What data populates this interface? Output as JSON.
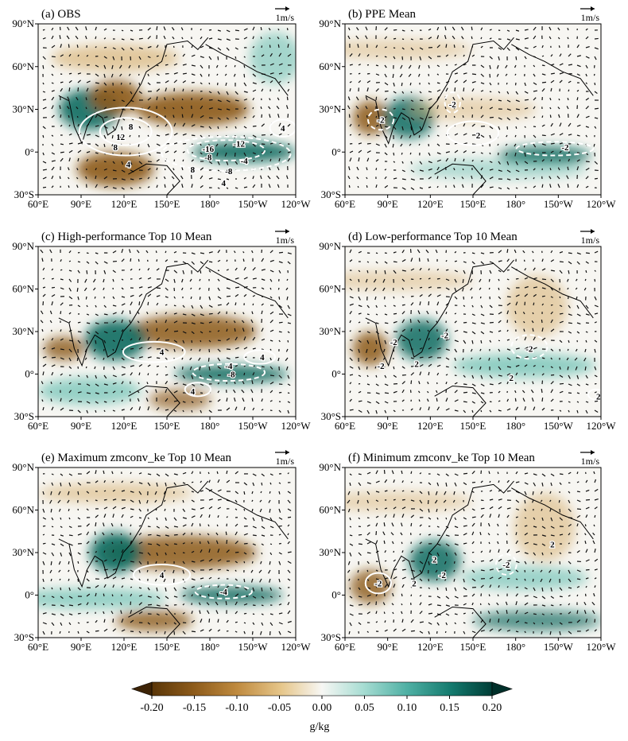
{
  "chart_data": {
    "type": "heatmap",
    "units": "g/kg",
    "colorbar": {
      "ticks": [
        "-0.20",
        "-0.15",
        "-0.10",
        "-0.05",
        "0.00",
        "0.05",
        "0.10",
        "0.15",
        "0.20"
      ],
      "range": [
        -0.2,
        0.2
      ],
      "label": "g/kg"
    },
    "lon_ticks": [
      "60°E",
      "90°E",
      "120°E",
      "150°E",
      "180°",
      "150°W",
      "120°W"
    ],
    "lat_ticks": [
      "90°N",
      "60°N",
      "30°N",
      "0°",
      "30°S"
    ],
    "vector_reference": "1m/s",
    "panels": [
      {
        "title": "(a) OBS",
        "contour_labels": [
          "8",
          "12",
          "8",
          "4",
          "-16",
          "-12",
          "-8",
          "-8",
          "-4",
          "8",
          "4",
          "4"
        ]
      },
      {
        "title": "(b) PPE Mean",
        "contour_labels": [
          "-2",
          "2",
          "-2",
          "-2"
        ]
      },
      {
        "title": "(c) High-performance Top 10 Mean",
        "contour_labels": [
          "4",
          "4",
          "-8",
          "-4",
          "4"
        ]
      },
      {
        "title": "(d) Low-performance Top 10 Mean",
        "contour_labels": [
          "-2",
          "-2",
          "2",
          "-2",
          "-2",
          "2",
          "2"
        ]
      },
      {
        "title": "(e) Maximum zmconv_ke Top 10 Mean",
        "contour_labels": [
          "4",
          "-4"
        ]
      },
      {
        "title": "(f) Minimum zmconv_ke Top 10 Mean",
        "contour_labels": [
          "-2",
          "-2",
          "2",
          "2",
          "-2",
          "2"
        ]
      }
    ]
  }
}
